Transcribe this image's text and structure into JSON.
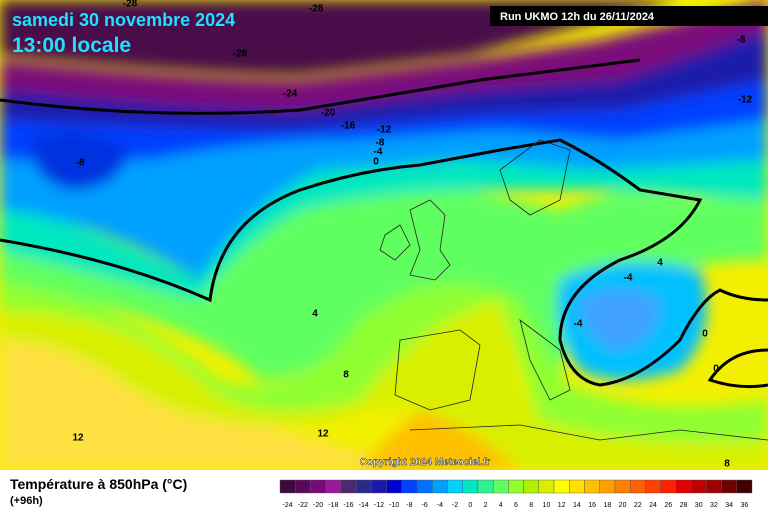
{
  "header": {
    "date": "samedi 30 novembre 2024",
    "time": "13:00 locale",
    "run": "Run UKMO 12h du 26/11/2024"
  },
  "copyright": "Copyright 2024 Meteociel.fr",
  "footer": {
    "title": "Température à 850hPa (°C)",
    "lead": "(+96h)"
  },
  "contour_labels": [
    -28,
    -28,
    -28,
    -24,
    -20,
    -16,
    -12,
    -8,
    -4,
    0,
    -8,
    -8,
    -12,
    4,
    8,
    12,
    12,
    -4,
    4,
    -4,
    0,
    0,
    8
  ],
  "legend": {
    "ticks": [
      -24,
      -22,
      -20,
      -18,
      -16,
      -14,
      -12,
      -10,
      -8,
      -6,
      -4,
      -2,
      0,
      2,
      4,
      6,
      8,
      10,
      12,
      14,
      16,
      18,
      20,
      22,
      24,
      26,
      28,
      30,
      32,
      34,
      36
    ],
    "colors": [
      "#3c0a3c",
      "#5a0a5a",
      "#7a0a7a",
      "#9a1a9a",
      "#4a2a6a",
      "#2a2a8a",
      "#1a1aaa",
      "#0000d0",
      "#0040ff",
      "#0070ff",
      "#00a0ff",
      "#00d0ff",
      "#00e8c0",
      "#30f090",
      "#60ff60",
      "#90ff30",
      "#b0f000",
      "#d8f000",
      "#ffff00",
      "#ffe000",
      "#ffc000",
      "#ffa000",
      "#ff8000",
      "#ff6000",
      "#ff4000",
      "#ff2000",
      "#e00000",
      "#c00000",
      "#a00000",
      "#700000",
      "#400000"
    ]
  }
}
